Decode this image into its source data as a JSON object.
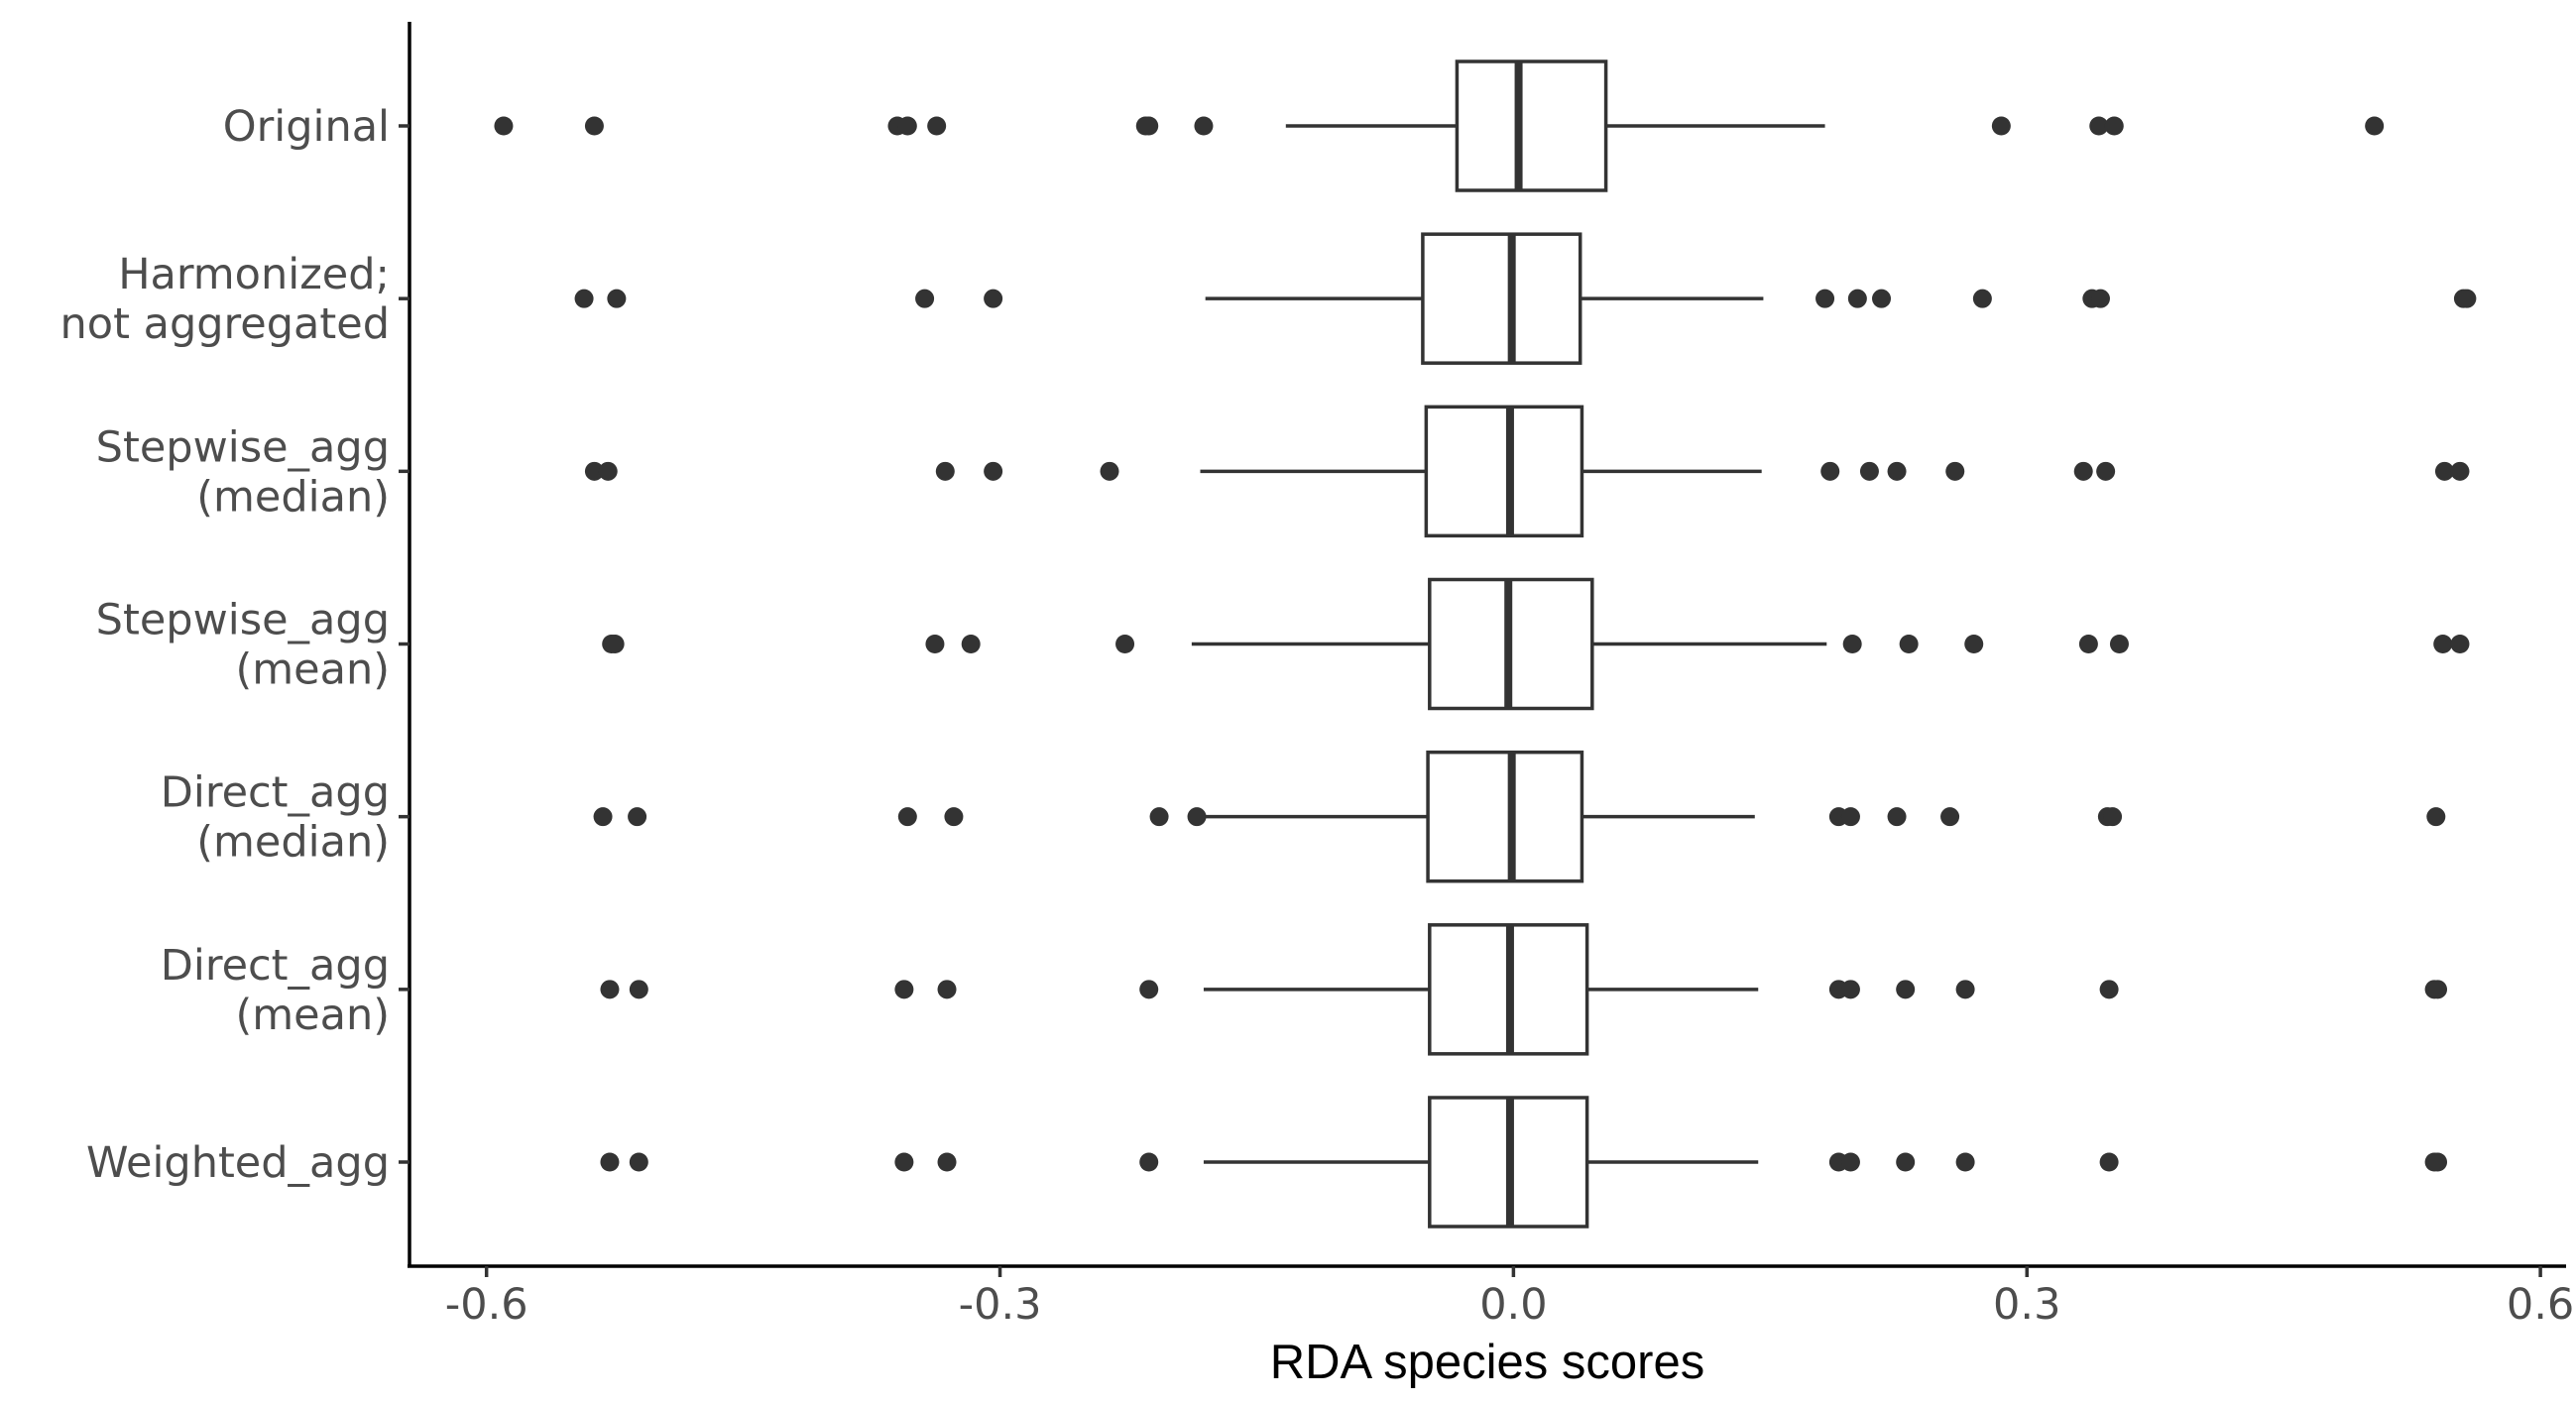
{
  "chart_data": {
    "type": "boxplot",
    "orientation": "horizontal",
    "title": "",
    "xlabel": "RDA species scores",
    "ylabel": "",
    "xlim": [
      -0.645,
      0.615
    ],
    "xticks": [
      {
        "value": -0.6,
        "label": "-0.6"
      },
      {
        "value": -0.3,
        "label": "-0.3"
      },
      {
        "value": 0.0,
        "label": "0.0"
      },
      {
        "value": 0.3,
        "label": "0.3"
      },
      {
        "value": 0.6,
        "label": "0.6"
      }
    ],
    "grid": false,
    "legend": "none",
    "colors": {
      "box_fill": "#ffffff",
      "stroke": "#333333",
      "outlier": "#333333",
      "text": "#4d4d4d"
    },
    "series": [
      {
        "label": [
          "Original"
        ],
        "whisker_low": -0.133,
        "q1": -0.033,
        "median": 0.003,
        "q3": 0.054,
        "whisker_high": 0.182,
        "outliers": [
          -0.59,
          -0.537,
          -0.36,
          -0.354,
          -0.337,
          -0.215,
          -0.213,
          -0.181,
          0.285,
          0.342,
          0.351,
          0.503
        ]
      },
      {
        "label": [
          "Harmonized;",
          "not aggregated"
        ],
        "whisker_low": -0.18,
        "q1": -0.053,
        "median": -0.001,
        "q3": 0.039,
        "whisker_high": 0.146,
        "outliers": [
          -0.543,
          -0.524,
          -0.344,
          -0.304,
          0.182,
          0.201,
          0.215,
          0.274,
          0.338,
          0.343,
          0.555,
          0.557
        ]
      },
      {
        "label": [
          "Stepwise_agg",
          "(median)"
        ],
        "whisker_low": -0.183,
        "q1": -0.051,
        "median": -0.002,
        "q3": 0.04,
        "whisker_high": 0.145,
        "outliers": [
          -0.537,
          -0.529,
          -0.332,
          -0.304,
          -0.236,
          0.185,
          0.208,
          0.224,
          0.258,
          0.333,
          0.346,
          0.544,
          0.553
        ]
      },
      {
        "label": [
          "Stepwise_agg",
          "(mean)"
        ],
        "whisker_low": -0.188,
        "q1": -0.049,
        "median": -0.003,
        "q3": 0.046,
        "whisker_high": 0.183,
        "outliers": [
          -0.527,
          -0.525,
          -0.338,
          -0.317,
          -0.227,
          0.198,
          0.231,
          0.269,
          0.336,
          0.354,
          0.543,
          0.553
        ]
      },
      {
        "label": [
          "Direct_agg",
          "(median)"
        ],
        "whisker_low": -0.183,
        "q1": -0.05,
        "median": -0.001,
        "q3": 0.04,
        "whisker_high": 0.141,
        "outliers": [
          -0.532,
          -0.512,
          -0.354,
          -0.327,
          -0.207,
          -0.185,
          0.19,
          0.197,
          0.224,
          0.255,
          0.347,
          0.35,
          0.539
        ]
      },
      {
        "label": [
          "Direct_agg",
          "(mean)"
        ],
        "whisker_low": -0.181,
        "q1": -0.049,
        "median": -0.002,
        "q3": 0.043,
        "whisker_high": 0.143,
        "outliers": [
          -0.528,
          -0.511,
          -0.356,
          -0.331,
          -0.213,
          0.19,
          0.197,
          0.229,
          0.264,
          0.348,
          0.538,
          0.54
        ]
      },
      {
        "label": [
          "Weighted_agg"
        ],
        "whisker_low": -0.181,
        "q1": -0.049,
        "median": -0.002,
        "q3": 0.043,
        "whisker_high": 0.143,
        "outliers": [
          -0.528,
          -0.511,
          -0.356,
          -0.331,
          -0.213,
          0.19,
          0.197,
          0.229,
          0.264,
          0.348,
          0.538,
          0.54
        ]
      }
    ]
  }
}
